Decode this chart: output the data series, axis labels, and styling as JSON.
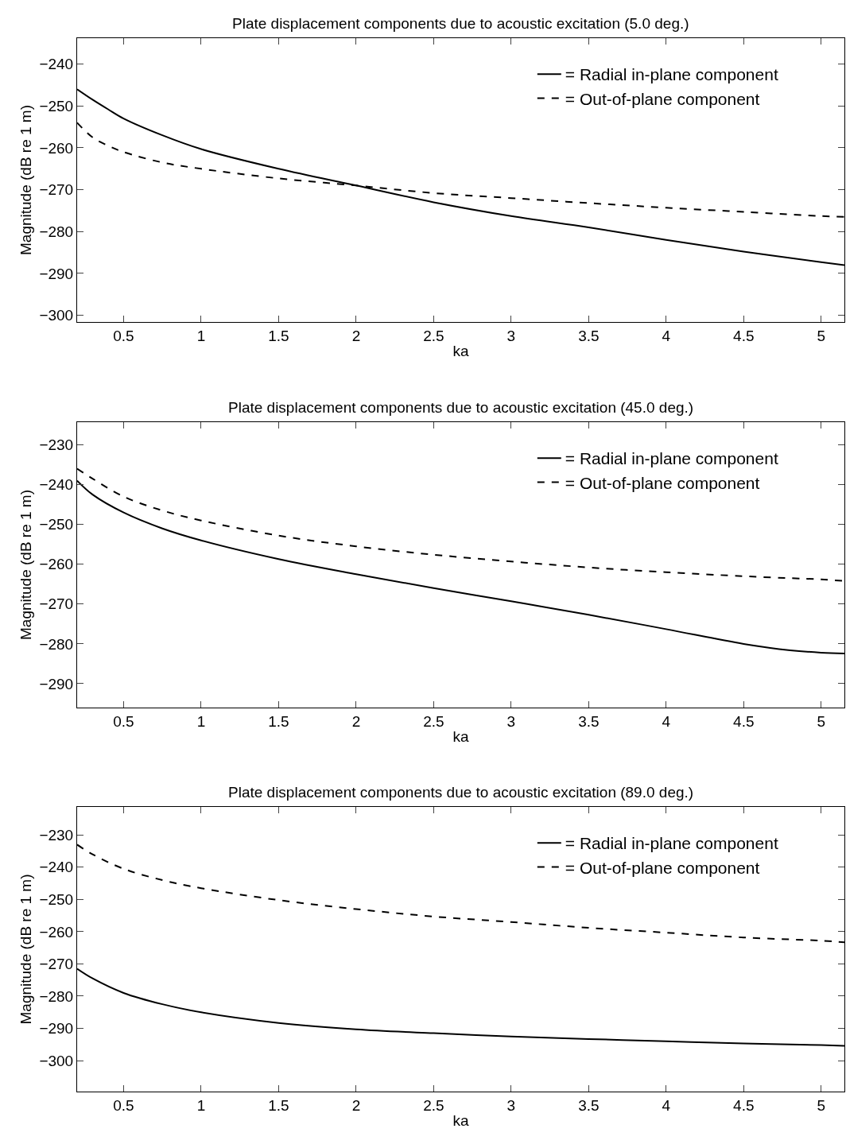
{
  "chart_data": [
    {
      "type": "line",
      "title": "Plate displacement components due to acoustic excitation (5.0 deg.)",
      "xlabel": "ka",
      "ylabel": "Magnitude (dB re 1 m)",
      "x": [
        0.2,
        0.3,
        0.4,
        0.5,
        0.75,
        1,
        1.5,
        2,
        2.5,
        3,
        3.5,
        4,
        4.5,
        5,
        5.15
      ],
      "series": [
        {
          "name": "= Radial in-plane component",
          "color": "#000000",
          "line_style": "solid",
          "values": [
            -246,
            -248.5,
            -250.8,
            -253,
            -257,
            -260.3,
            -265,
            -269,
            -273,
            -276.3,
            -279,
            -282,
            -284.8,
            -287.3,
            -288
          ]
        },
        {
          "name": "= Out-of-plane component",
          "color": "#000000",
          "line_style": "dashed",
          "values": [
            -254,
            -257.5,
            -259.5,
            -261,
            -263.5,
            -265,
            -267.3,
            -269,
            -270.8,
            -272,
            -273.2,
            -274.3,
            -275.3,
            -276.3,
            -276.5
          ]
        }
      ],
      "xlim": [
        0.2,
        5.15
      ],
      "ylim": [
        -301.6,
        -233.8
      ],
      "xticks": [
        0.5,
        1,
        1.5,
        2,
        2.5,
        3,
        3.5,
        4,
        4.5,
        5
      ],
      "yticks": [
        -300,
        -290,
        -280,
        -270,
        -260,
        -250,
        -240
      ],
      "legend": "top right",
      "grid": false
    },
    {
      "type": "line",
      "title": "Plate displacement components due to acoustic excitation (45.0 deg.)",
      "xlabel": "ka",
      "ylabel": "Magnitude (dB re 1 m)",
      "x": [
        0.2,
        0.3,
        0.5,
        0.75,
        1,
        1.5,
        2,
        2.5,
        3,
        3.5,
        4,
        4.5,
        4.8,
        5,
        5.15
      ],
      "series": [
        {
          "name": "= Radial in-plane component",
          "color": "#000000",
          "line_style": "solid",
          "values": [
            -239,
            -242.5,
            -247,
            -251,
            -254,
            -258.7,
            -262.5,
            -266,
            -269.3,
            -272.7,
            -276.3,
            -280,
            -281.6,
            -282.2,
            -282.4
          ]
        },
        {
          "name": "= Out-of-plane component",
          "color": "#000000",
          "line_style": "dashed",
          "values": [
            -236,
            -238.5,
            -243,
            -246.5,
            -249,
            -252.8,
            -255.5,
            -257.6,
            -259.3,
            -260.8,
            -262,
            -263,
            -263.5,
            -263.8,
            -264.2
          ]
        }
      ],
      "xlim": [
        0.2,
        5.15
      ],
      "ylim": [
        -296,
        -224.3
      ],
      "xticks": [
        0.5,
        1,
        1.5,
        2,
        2.5,
        3,
        3.5,
        4,
        4.5,
        5
      ],
      "yticks": [
        -290,
        -280,
        -270,
        -260,
        -250,
        -240,
        -230
      ],
      "legend": "top right",
      "grid": false
    },
    {
      "type": "line",
      "title": "Plate displacement components due to acoustic excitation (89.0 deg.)",
      "xlabel": "ka",
      "ylabel": "Magnitude (dB re 1 m)",
      "x": [
        0.2,
        0.3,
        0.5,
        0.75,
        1,
        1.5,
        2,
        2.5,
        3,
        3.5,
        4,
        4.5,
        5,
        5.15
      ],
      "series": [
        {
          "name": "= Radial in-plane component",
          "color": "#000000",
          "line_style": "solid",
          "values": [
            -271.5,
            -274.5,
            -279,
            -282.5,
            -285,
            -288.3,
            -290.3,
            -291.5,
            -292.5,
            -293.3,
            -294,
            -294.7,
            -295.2,
            -295.4
          ]
        },
        {
          "name": "= Out-of-plane component",
          "color": "#000000",
          "line_style": "dashed",
          "values": [
            -233,
            -236,
            -240.5,
            -244,
            -246.5,
            -250.2,
            -253,
            -255.3,
            -257,
            -258.8,
            -260.3,
            -261.8,
            -262.8,
            -263.3
          ]
        }
      ],
      "xlim": [
        0.2,
        5.15
      ],
      "ylim": [
        -309.6,
        -221.3
      ],
      "xticks": [
        0.5,
        1,
        1.5,
        2,
        2.5,
        3,
        3.5,
        4,
        4.5,
        5
      ],
      "yticks": [
        -300,
        -290,
        -280,
        -270,
        -260,
        -250,
        -240,
        -230
      ],
      "legend": "top right",
      "grid": false
    }
  ]
}
